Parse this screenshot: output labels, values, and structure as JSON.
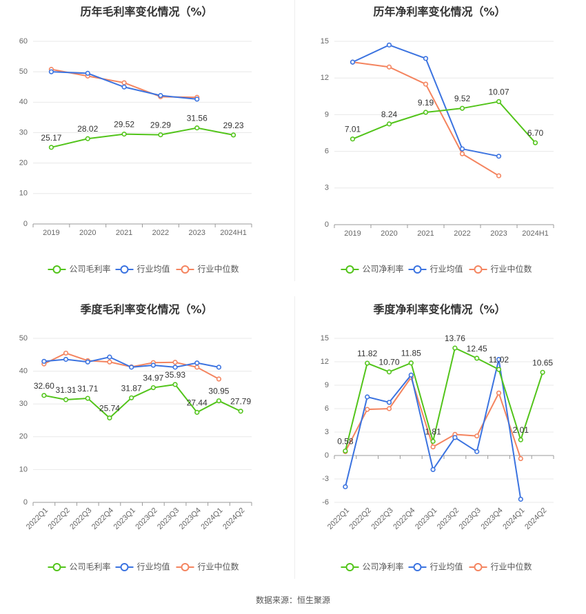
{
  "colors": {
    "company": "#52c41a",
    "industry_avg": "#3b73e0",
    "industry_median": "#f4845f",
    "grid": "#e8e8e8",
    "axis": "#999999"
  },
  "legend_labels": {
    "gross": [
      "公司毛利率",
      "行业均值",
      "行业中位数"
    ],
    "net": [
      "公司净利率",
      "行业均值",
      "行业中位数"
    ]
  },
  "source_text": "数据来源：恒生聚源",
  "chart_data": [
    {
      "type": "line",
      "title": "历年毛利率变化情况（%）",
      "categories": [
        "2019",
        "2020",
        "2021",
        "2022",
        "2023",
        "2024H1"
      ],
      "ylim": [
        0,
        60
      ],
      "yticks": [
        0,
        10,
        20,
        30,
        40,
        50,
        60
      ],
      "grid": true,
      "legend": "bottom",
      "series": [
        {
          "name": "公司毛利率",
          "values": [
            25.17,
            28.02,
            29.52,
            29.29,
            31.56,
            29.23
          ],
          "labels": [
            "25.17",
            "28.02",
            "29.52",
            "29.29",
            "31.56",
            "29.23"
          ]
        },
        {
          "name": "行业均值",
          "values": [
            50.0,
            49.5,
            45.0,
            42.2,
            41.0,
            null
          ]
        },
        {
          "name": "行业中位数",
          "values": [
            50.8,
            48.6,
            46.4,
            41.8,
            41.6,
            null
          ]
        }
      ]
    },
    {
      "type": "line",
      "title": "历年净利率变化情况（%）",
      "categories": [
        "2019",
        "2020",
        "2021",
        "2022",
        "2023",
        "2024H1"
      ],
      "ylim": [
        0,
        15
      ],
      "yticks": [
        0,
        3,
        6,
        9,
        12,
        15
      ],
      "grid": true,
      "legend": "bottom",
      "series": [
        {
          "name": "公司净利率",
          "values": [
            7.01,
            8.24,
            9.19,
            9.52,
            10.07,
            6.7
          ],
          "labels": [
            "7.01",
            "8.24",
            "9.19",
            "9.52",
            "10.07",
            "6.70"
          ]
        },
        {
          "name": "行业均值",
          "values": [
            13.3,
            14.7,
            13.6,
            6.2,
            5.6,
            null
          ]
        },
        {
          "name": "行业中位数",
          "values": [
            13.3,
            12.9,
            11.5,
            5.8,
            4.0,
            null
          ]
        }
      ]
    },
    {
      "type": "line",
      "title": "季度毛利率变化情况（%）",
      "categories": [
        "2022Q1",
        "2022Q2",
        "2022Q3",
        "2022Q4",
        "2023Q1",
        "2023Q2",
        "2023Q3",
        "2023Q4",
        "2024Q1",
        "2024Q2"
      ],
      "ylim": [
        0,
        50
      ],
      "yticks": [
        0,
        10,
        20,
        30,
        40,
        50
      ],
      "grid": true,
      "legend": "bottom",
      "series": [
        {
          "name": "公司毛利率",
          "values": [
            32.6,
            31.31,
            31.71,
            25.74,
            31.87,
            34.97,
            35.93,
            27.44,
            30.95,
            27.79
          ],
          "labels": [
            "32.60",
            "31.31",
            "31.71",
            "25.74",
            "31.87",
            "34.97",
            "35.93",
            "27.44",
            "30.95",
            "27.79"
          ]
        },
        {
          "name": "行业均值",
          "values": [
            43.0,
            43.6,
            42.8,
            44.3,
            41.2,
            41.8,
            41.2,
            42.5,
            41.2,
            null
          ]
        },
        {
          "name": "行业中位数",
          "values": [
            42.2,
            45.5,
            43.2,
            42.8,
            41.3,
            42.6,
            42.7,
            41.2,
            37.6,
            null
          ]
        }
      ]
    },
    {
      "type": "line",
      "title": "季度净利率变化情况（%）",
      "categories": [
        "2022Q1",
        "2022Q2",
        "2022Q3",
        "2022Q4",
        "2023Q1",
        "2023Q2",
        "2023Q3",
        "2023Q4",
        "2024Q1",
        "2024Q2"
      ],
      "ylim": [
        -6,
        15
      ],
      "yticks": [
        -6,
        -3,
        0,
        3,
        6,
        9,
        12,
        15
      ],
      "grid": true,
      "legend": "bottom",
      "series": [
        {
          "name": "公司净利率",
          "values": [
            0.58,
            11.82,
            10.7,
            11.85,
            1.81,
            13.76,
            12.45,
            11.02,
            2.01,
            10.65
          ],
          "labels": [
            "0.58",
            "11.82",
            "10.70",
            "11.85",
            "1.81",
            "13.76",
            "12.45",
            "11.02",
            "2.01",
            "10.65"
          ]
        },
        {
          "name": "行业均值",
          "values": [
            -4.0,
            7.5,
            6.8,
            10.3,
            -1.8,
            2.3,
            0.5,
            12.3,
            -5.6,
            null
          ]
        },
        {
          "name": "行业中位数",
          "values": [
            0.5,
            5.9,
            6.0,
            10.0,
            1.1,
            2.7,
            2.5,
            8.0,
            -0.4,
            null
          ]
        }
      ]
    }
  ]
}
